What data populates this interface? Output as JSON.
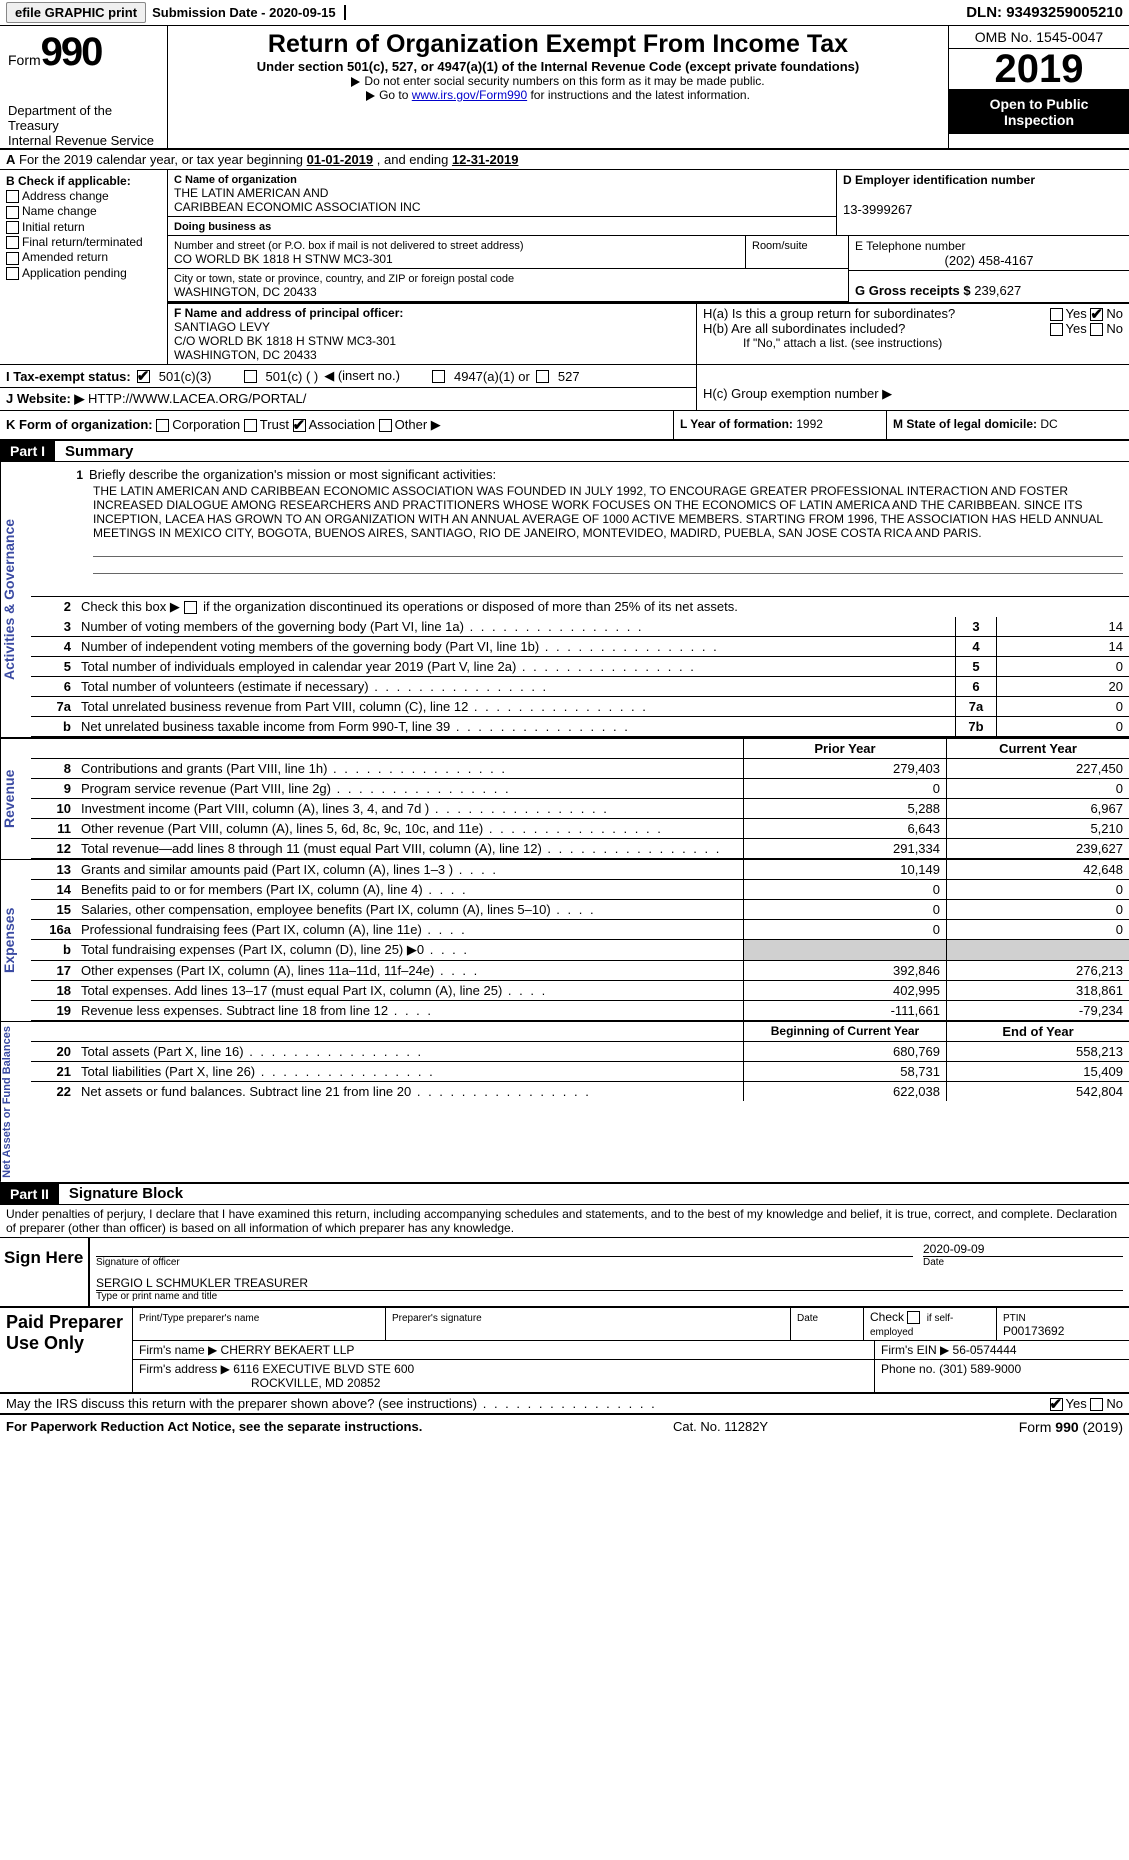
{
  "topbar": {
    "efile": "efile GRAPHIC print",
    "subdate_lbl": "Submission Date - ",
    "subdate": "2020-09-15",
    "dln_lbl": "DLN: ",
    "dln": "93493259005210"
  },
  "header": {
    "form_lbl": "Form",
    "form_num": "990",
    "dept": "Department of the Treasury\nInternal Revenue Service",
    "title": "Return of Organization Exempt From Income Tax",
    "sub1": "Under section 501(c), 527, or 4947(a)(1) of the Internal Revenue Code (except private foundations)",
    "sub2": "Do not enter social security numbers on this form as it may be made public.",
    "sub3a": "Go to ",
    "sub3_link": "www.irs.gov/Form990",
    "sub3b": " for instructions and the latest information.",
    "omb": "OMB No. 1545-0047",
    "year": "2019",
    "open": "Open to Public Inspection"
  },
  "rowA": {
    "a": "A",
    "txt": "For the 2019 calendar year, or tax year beginning ",
    "d1": "01-01-2019",
    "mid": "  , and ending ",
    "d2": "12-31-2019"
  },
  "B": {
    "lbl": "B Check if applicable:",
    "opts": [
      "Address change",
      "Name change",
      "Initial return",
      "Final return/terminated",
      "Amended return",
      "Application pending"
    ]
  },
  "C": {
    "name_lbl": "C Name of organization",
    "name": "THE LATIN AMERICAN AND\nCARIBBEAN ECONOMIC ASSOCIATION INC",
    "dba_lbl": "Doing business as",
    "dba": "",
    "addr_lbl": "Number and street (or P.O. box if mail is not delivered to street address)",
    "room_lbl": "Room/suite",
    "addr": "CO WORLD BK 1818 H STNW MC3-301",
    "city_lbl": "City or town, state or province, country, and ZIP or foreign postal code",
    "city": "WASHINGTON, DC  20433"
  },
  "D": {
    "lbl": "D Employer identification number",
    "val": "13-3999267"
  },
  "E": {
    "lbl": "E Telephone number",
    "val": "(202) 458-4167"
  },
  "G": {
    "lbl": "G Gross receipts $ ",
    "val": "239,627"
  },
  "F": {
    "lbl": "F  Name and address of principal officer:",
    "name": "SANTIAGO LEVY",
    "addr": "C/O WORLD BK 1818 H STNW MC3-301\nWASHINGTON, DC  20433"
  },
  "H": {
    "a_lbl": "H(a)  Is this a group return for subordinates?",
    "b_lbl": "H(b)  Are all subordinates included?",
    "b_note": "If \"No,\" attach a list. (see instructions)",
    "c_lbl": "H(c)  Group exemption number ▶",
    "yes": "Yes",
    "no": "No"
  },
  "I": {
    "lbl": "I  Tax-exempt status:",
    "o1": "501(c)(3)",
    "o2": "501(c) (  )",
    "o2b": "◀  (insert no.)",
    "o3": "4947(a)(1) or",
    "o4": "527"
  },
  "J": {
    "lbl": "J  Website: ▶",
    "val": "HTTP://WWW.LACEA.ORG/PORTAL/"
  },
  "K": {
    "lbl": "K Form of organization:",
    "o1": "Corporation",
    "o2": "Trust",
    "o3": "Association",
    "o4": "Other ▶"
  },
  "L": {
    "lbl": "L Year of formation: ",
    "val": "1992"
  },
  "M": {
    "lbl": "M State of legal domicile: ",
    "val": "DC"
  },
  "part1": {
    "lbl": "Part I",
    "title": "Summary"
  },
  "part2": {
    "lbl": "Part II",
    "title": "Signature Block"
  },
  "vtabs": {
    "ag": "Activities & Governance",
    "rev": "Revenue",
    "exp": "Expenses",
    "na": "Net Assets or Fund Balances"
  },
  "mission": {
    "num": "1",
    "lbl": "Briefly describe the organization's mission or most significant activities:",
    "txt": "THE LATIN AMERICAN AND CARIBBEAN ECONOMIC ASSOCIATION WAS FOUNDED IN JULY 1992, TO ENCOURAGE GREATER PROFESSIONAL INTERACTION AND FOSTER INCREASED DIALOGUE AMONG RESEARCHERS AND PRACTITIONERS WHOSE WORK FOCUSES ON THE ECONOMICS OF LATIN AMERICA AND THE CARIBBEAN. SINCE ITS INCEPTION, LACEA HAS GROWN TO AN ORGANIZATION WITH AN ANNUAL AVERAGE OF 1000 ACTIVE MEMBERS. STARTING FROM 1996, THE ASSOCIATION HAS HELD ANNUAL MEETINGS IN MEXICO CITY, BOGOTA, BUENOS AIRES, SANTIAGO, RIO DE JANEIRO, MONTEVIDEO, MADIRD, PUEBLA, SAN JOSE COSTA RICA AND PARIS."
  },
  "line2": {
    "n": "2",
    "t": "Check this box ▶",
    "t2": "if the organization discontinued its operations or disposed of more than 25% of its net assets."
  },
  "lines_gov": [
    {
      "n": "3",
      "t": "Number of voting members of the governing body (Part VI, line 1a)",
      "box": "3",
      "v": "14"
    },
    {
      "n": "4",
      "t": "Number of independent voting members of the governing body (Part VI, line 1b)",
      "box": "4",
      "v": "14"
    },
    {
      "n": "5",
      "t": "Total number of individuals employed in calendar year 2019 (Part V, line 2a)",
      "box": "5",
      "v": "0"
    },
    {
      "n": "6",
      "t": "Total number of volunteers (estimate if necessary)",
      "box": "6",
      "v": "20"
    },
    {
      "n": "7a",
      "t": "Total unrelated business revenue from Part VIII, column (C), line 12",
      "box": "7a",
      "v": "0"
    },
    {
      "n": "b",
      "t": "Net unrelated business taxable income from Form 990-T, line 39",
      "box": "7b",
      "v": "0"
    }
  ],
  "hdr_py": "Prior Year",
  "hdr_cy": "Current Year",
  "lines_rev": [
    {
      "n": "8",
      "t": "Contributions and grants (Part VIII, line 1h)",
      "p": "279,403",
      "c": "227,450"
    },
    {
      "n": "9",
      "t": "Program service revenue (Part VIII, line 2g)",
      "p": "0",
      "c": "0"
    },
    {
      "n": "10",
      "t": "Investment income (Part VIII, column (A), lines 3, 4, and 7d )",
      "p": "5,288",
      "c": "6,967"
    },
    {
      "n": "11",
      "t": "Other revenue (Part VIII, column (A), lines 5, 6d, 8c, 9c, 10c, and 11e)",
      "p": "6,643",
      "c": "5,210"
    },
    {
      "n": "12",
      "t": "Total revenue—add lines 8 through 11 (must equal Part VIII, column (A), line 12)",
      "p": "291,334",
      "c": "239,627"
    }
  ],
  "lines_exp": [
    {
      "n": "13",
      "t": "Grants and similar amounts paid (Part IX, column (A), lines 1–3 )",
      "p": "10,149",
      "c": "42,648"
    },
    {
      "n": "14",
      "t": "Benefits paid to or for members (Part IX, column (A), line 4)",
      "p": "0",
      "c": "0"
    },
    {
      "n": "15",
      "t": "Salaries, other compensation, employee benefits (Part IX, column (A), lines 5–10)",
      "p": "0",
      "c": "0"
    },
    {
      "n": "16a",
      "t": "Professional fundraising fees (Part IX, column (A), line 11e)",
      "p": "0",
      "c": "0"
    },
    {
      "n": "b",
      "t": "Total fundraising expenses (Part IX, column (D), line 25) ▶0",
      "p": "",
      "c": "",
      "grey": true
    },
    {
      "n": "17",
      "t": "Other expenses (Part IX, column (A), lines 11a–11d, 11f–24e)",
      "p": "392,846",
      "c": "276,213"
    },
    {
      "n": "18",
      "t": "Total expenses. Add lines 13–17 (must equal Part IX, column (A), line 25)",
      "p": "402,995",
      "c": "318,861"
    },
    {
      "n": "19",
      "t": "Revenue less expenses. Subtract line 18 from line 12",
      "p": "-111,661",
      "c": "-79,234"
    }
  ],
  "hdr_bcy": "Beginning of Current Year",
  "hdr_eoy": "End of Year",
  "lines_na": [
    {
      "n": "20",
      "t": "Total assets (Part X, line 16)",
      "p": "680,769",
      "c": "558,213"
    },
    {
      "n": "21",
      "t": "Total liabilities (Part X, line 26)",
      "p": "58,731",
      "c": "15,409"
    },
    {
      "n": "22",
      "t": "Net assets or fund balances. Subtract line 21 from line 20",
      "p": "622,038",
      "c": "542,804"
    }
  ],
  "sig": {
    "decl": "Under penalties of perjury, I declare that I have examined this return, including accompanying schedules and statements, and to the best of my knowledge and belief, it is true, correct, and complete. Declaration of preparer (other than officer) is based on all information of which preparer has any knowledge.",
    "sign_here": "Sign Here",
    "sig_lbl": "Signature of officer",
    "date_lbl": "Date",
    "date": "2020-09-09",
    "name": "SERGIO L SCHMUKLER  TREASURER",
    "type_lbl": "Type or print name and title"
  },
  "paid": {
    "lbl": "Paid Preparer Use Only",
    "h_prep": "Print/Type preparer's name",
    "h_sig": "Preparer's signature",
    "h_date": "Date",
    "h_chk": "Check",
    "h_if": "if self-employed",
    "h_ptin": "PTIN",
    "ptin": "P00173692",
    "firm_name_lbl": "Firm's name    ▶ ",
    "firm_name": "CHERRY BEKAERT LLP",
    "firm_ein_lbl": "Firm's EIN ▶ ",
    "firm_ein": "56-0574444",
    "firm_addr_lbl": "Firm's address ▶ ",
    "firm_addr": "6116 EXECUTIVE BLVD STE 600",
    "firm_addr2": "ROCKVILLE, MD  20852",
    "phone_lbl": "Phone no. ",
    "phone": "(301) 589-9000"
  },
  "bottom": {
    "q": "May the IRS discuss this return with the preparer shown above? (see instructions)",
    "yes": "Yes",
    "no": "No"
  },
  "footer": {
    "l": "For Paperwork Reduction Act Notice, see the separate instructions.",
    "c": "Cat. No. 11282Y",
    "r1": "Form ",
    "r2": "990",
    "r3": " (2019)"
  }
}
